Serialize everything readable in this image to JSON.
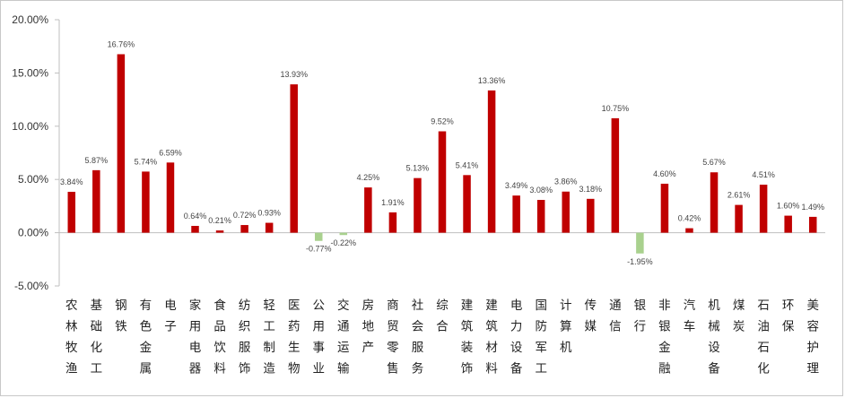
{
  "chart_data": {
    "type": "bar",
    "categories": [
      "农林牧渔",
      "基础化工",
      "钢铁",
      "有色金属",
      "电子",
      "家用电器",
      "食品饮料",
      "纺织服饰",
      "轻工制造",
      "医药生物",
      "公用事业",
      "交通运输",
      "房地产",
      "商贸零售",
      "社会服务",
      "综合",
      "建筑装饰",
      "建筑材料",
      "电力设备",
      "国防军工",
      "计算机",
      "传媒",
      "通信",
      "银行",
      "非银金融",
      "汽车",
      "机械设备",
      "煤炭",
      "石油石化",
      "环保",
      "美容护理"
    ],
    "values": [
      3.84,
      5.87,
      16.76,
      5.74,
      6.59,
      0.64,
      0.21,
      0.72,
      0.93,
      13.93,
      -0.77,
      -0.22,
      4.25,
      1.91,
      5.13,
      9.52,
      5.41,
      13.36,
      3.49,
      3.08,
      3.86,
      3.18,
      10.75,
      -1.95,
      4.6,
      0.42,
      5.67,
      2.61,
      4.51,
      1.6,
      1.49
    ],
    "value_labels": [
      "3.84%",
      "5.87%",
      "16.76%",
      "5.74%",
      "6.59%",
      "0.64%",
      "0.21%",
      "0.72%",
      "0.93%",
      "13.93%",
      "-0.77%",
      "-0.22%",
      "4.25%",
      "1.91%",
      "5.13%",
      "9.52%",
      "5.41%",
      "13.36%",
      "3.49%",
      "3.08%",
      "3.86%",
      "3.18%",
      "10.75%",
      "-1.95%",
      "4.60%",
      "0.42%",
      "5.67%",
      "2.61%",
      "4.51%",
      "1.60%",
      "1.49%"
    ],
    "yticks": [
      20,
      15,
      10,
      5,
      0,
      -5
    ],
    "ytick_labels": [
      "20.00%",
      "15.00%",
      "10.00%",
      "5.00%",
      "0.00%",
      "-5.00%"
    ],
    "ylim": [
      -5,
      20
    ],
    "title": "",
    "xlabel": "",
    "ylabel": "",
    "grid": false,
    "legend": "none",
    "colors": {
      "positive": "#c00000",
      "negative": "#a9d18e",
      "axis": "#bfbfbf"
    }
  }
}
